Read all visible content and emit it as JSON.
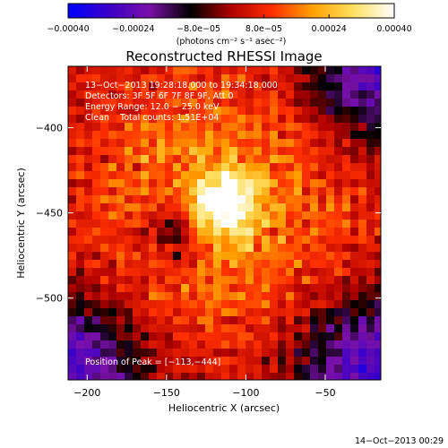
{
  "chart_data": {
    "type": "heatmap",
    "title": "Reconstructed RHESSI Image",
    "xlabel": "Heliocentric X (arcsec)",
    "ylabel": "Heliocentric Y (arcsec)",
    "xlim": [
      -212,
      -15
    ],
    "ylim": [
      -548,
      -364
    ],
    "x_ticks": [
      -200,
      -150,
      -100,
      -50
    ],
    "y_ticks": [
      -400,
      -450,
      -500
    ],
    "x_tick_labels": [
      "−200",
      "−150",
      "−100",
      "−50"
    ],
    "y_tick_labels": [
      "−400",
      "−450",
      "−500"
    ],
    "colorbar": {
      "range": [
        -0.0004,
        0.0004
      ],
      "ticks": [
        -0.0004,
        -0.00024,
        -8e-05,
        8e-05,
        0.00024,
        0.0004
      ],
      "tick_labels": [
        "−0.00040",
        "−0.00024",
        "−8.0e−05",
        "8.0e−05",
        "0.00024",
        "0.00040"
      ],
      "unit_label": "(photons cm⁻² s⁻¹ asec⁻²)",
      "colormap": [
        "#0000ff",
        "#3a00c8",
        "#7a10a8",
        "#000000",
        "#b00000",
        "#ff3000",
        "#ffa000",
        "#ffe060",
        "#ffffff"
      ]
    },
    "info_lines": [
      "13−Oct−2013 19:28:18.000 to 19:34:18.000",
      "Detectors: 3F 5F 6F 7F 8F 9F, Att 0",
      "Energy Range: 12.0 − 25.0 keV",
      "Clean    Total counts: 1.51E+04"
    ],
    "peak_label": "Position of Peak = [−113,−444]",
    "peak_position": [
      -113,
      -444
    ],
    "peak_value": 0.0004,
    "timestamp": "14−Oct−2013 00:29",
    "background_color": "#000000",
    "grid": false
  }
}
